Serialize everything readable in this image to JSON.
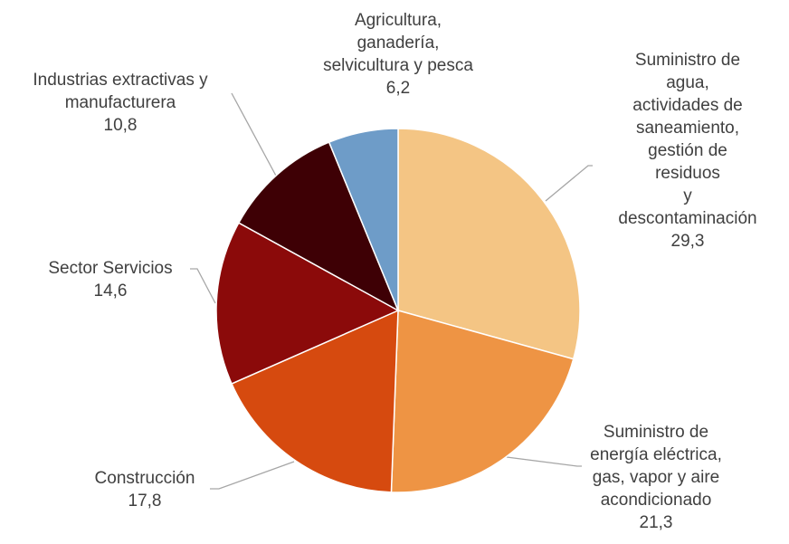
{
  "chart_data": {
    "type": "pie",
    "categories": [
      "Suministro de agua,\nactividades de\nsaneamiento,\ngestión de residuos\ny descontaminación",
      "Suministro de\nenergía eléctrica,\ngas, vapor y aire\nacondicionado",
      "Construcción",
      "Sector Servicios",
      "Industrias extractivas y\nmanufacturera",
      "Agricultura,\nganadería,\nselvicultura y pesca"
    ],
    "values": [
      29.3,
      21.3,
      17.8,
      14.6,
      10.8,
      6.2
    ],
    "value_labels": [
      "29,3",
      "21,3",
      "17,8",
      "14,6",
      "10,8",
      "6,2"
    ],
    "colors": [
      "#f4c584",
      "#ee9444",
      "#d64a0f",
      "#8b0a0a",
      "#3e0005",
      "#6e9cc8"
    ]
  }
}
